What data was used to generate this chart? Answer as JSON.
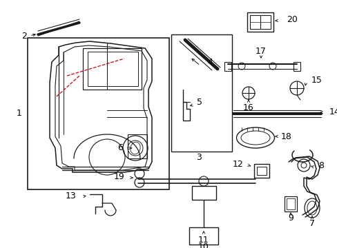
{
  "background_color": "#ffffff",
  "line_color": "#1a1a1a",
  "text_color": "#000000",
  "red_color": "#cc0000",
  "figsize": [
    4.89,
    3.6
  ],
  "dpi": 100
}
